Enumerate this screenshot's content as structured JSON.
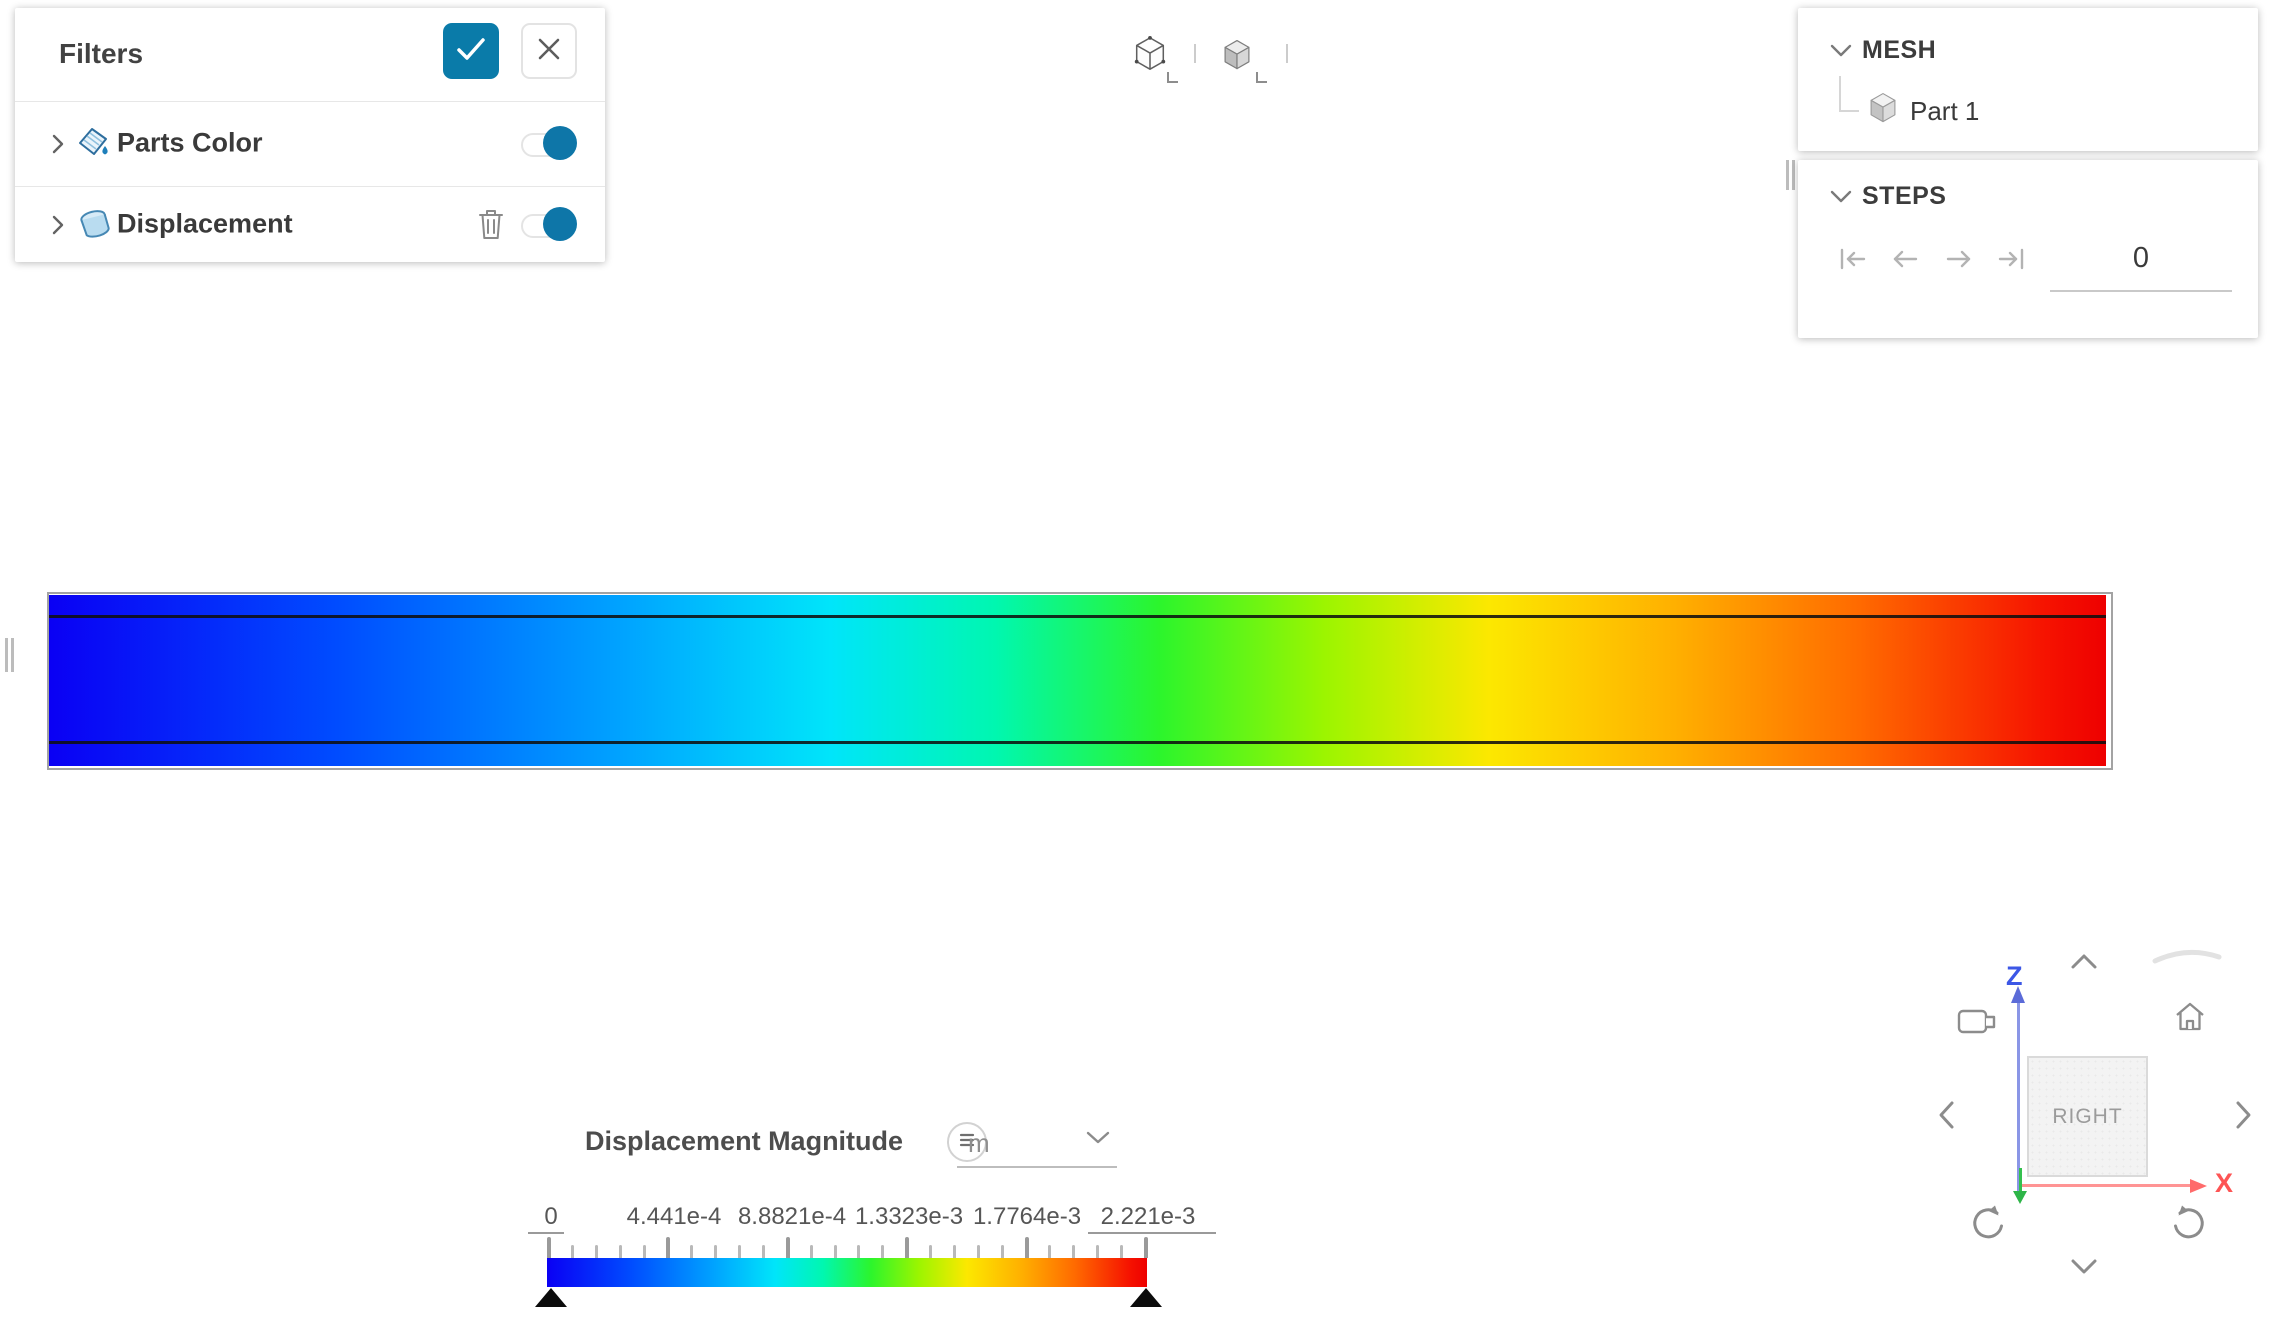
{
  "colors": {
    "accent_blue": "#0a7ba9",
    "toggle_blue": "#0e76a8",
    "axis_z": "#3c57e6",
    "axis_x": "#fd5454",
    "axis_y": "#2eb548",
    "icon_gray": "#8c8c8c"
  },
  "filters_panel": {
    "title": "Filters",
    "apply_button_icon": "check-icon",
    "close_button_icon": "close-icon",
    "rows": [
      {
        "label": "Parts Color",
        "icon": "paint-bucket-icon",
        "toggle": "on"
      },
      {
        "label": "Displacement",
        "icon": "displacement-field-icon",
        "toggle": "on",
        "delete_icon": "trash-icon"
      }
    ]
  },
  "view_toolbar": {
    "buttons": [
      {
        "icon": "wireframe-cube-icon"
      },
      {
        "icon": "shaded-cube-icon"
      }
    ]
  },
  "mesh_panel": {
    "title": "MESH",
    "tree": [
      {
        "label": "Part 1",
        "icon": "cube-icon"
      }
    ]
  },
  "steps_panel": {
    "title": "STEPS",
    "controls": [
      "first-step-icon",
      "previous-step-icon",
      "next-step-icon",
      "last-step-icon"
    ],
    "value": "0"
  },
  "viewport": {
    "field_shown": "Displacement Magnitude",
    "colormap": [
      "#0a00f4 0%",
      "#004cff 14%",
      "#00a4ff 28%",
      "#00e5fa 38%",
      "#00f7b0 46%",
      "#2cf52c 54%",
      "#9cf500 62%",
      "#fce800 70%",
      "#ffb000 79%",
      "#ff6a00 88%",
      "#f61300 97%",
      "#ee0000 100%"
    ]
  },
  "legend": {
    "title": "Displacement Magnitude",
    "menu_icon": "hamburger-icon",
    "unit": "m",
    "unit_dropdown_icon": "chevron-down-icon",
    "tick_labels": [
      "0",
      "4.441e-4",
      "8.8821e-4",
      "1.3323e-3",
      "1.7764e-3",
      "2.221e-3"
    ],
    "range_min": "0",
    "range_max": "2.221e-3"
  },
  "gizmo": {
    "face_label": "RIGHT",
    "axis_labels": {
      "z": "Z",
      "x": "X"
    },
    "controls": [
      "camera-icon",
      "home-icon",
      "pan-up-icon",
      "pan-down-icon",
      "pan-left-icon",
      "pan-right-icon",
      "rotate-ccw-icon",
      "rotate-cw-icon"
    ]
  }
}
